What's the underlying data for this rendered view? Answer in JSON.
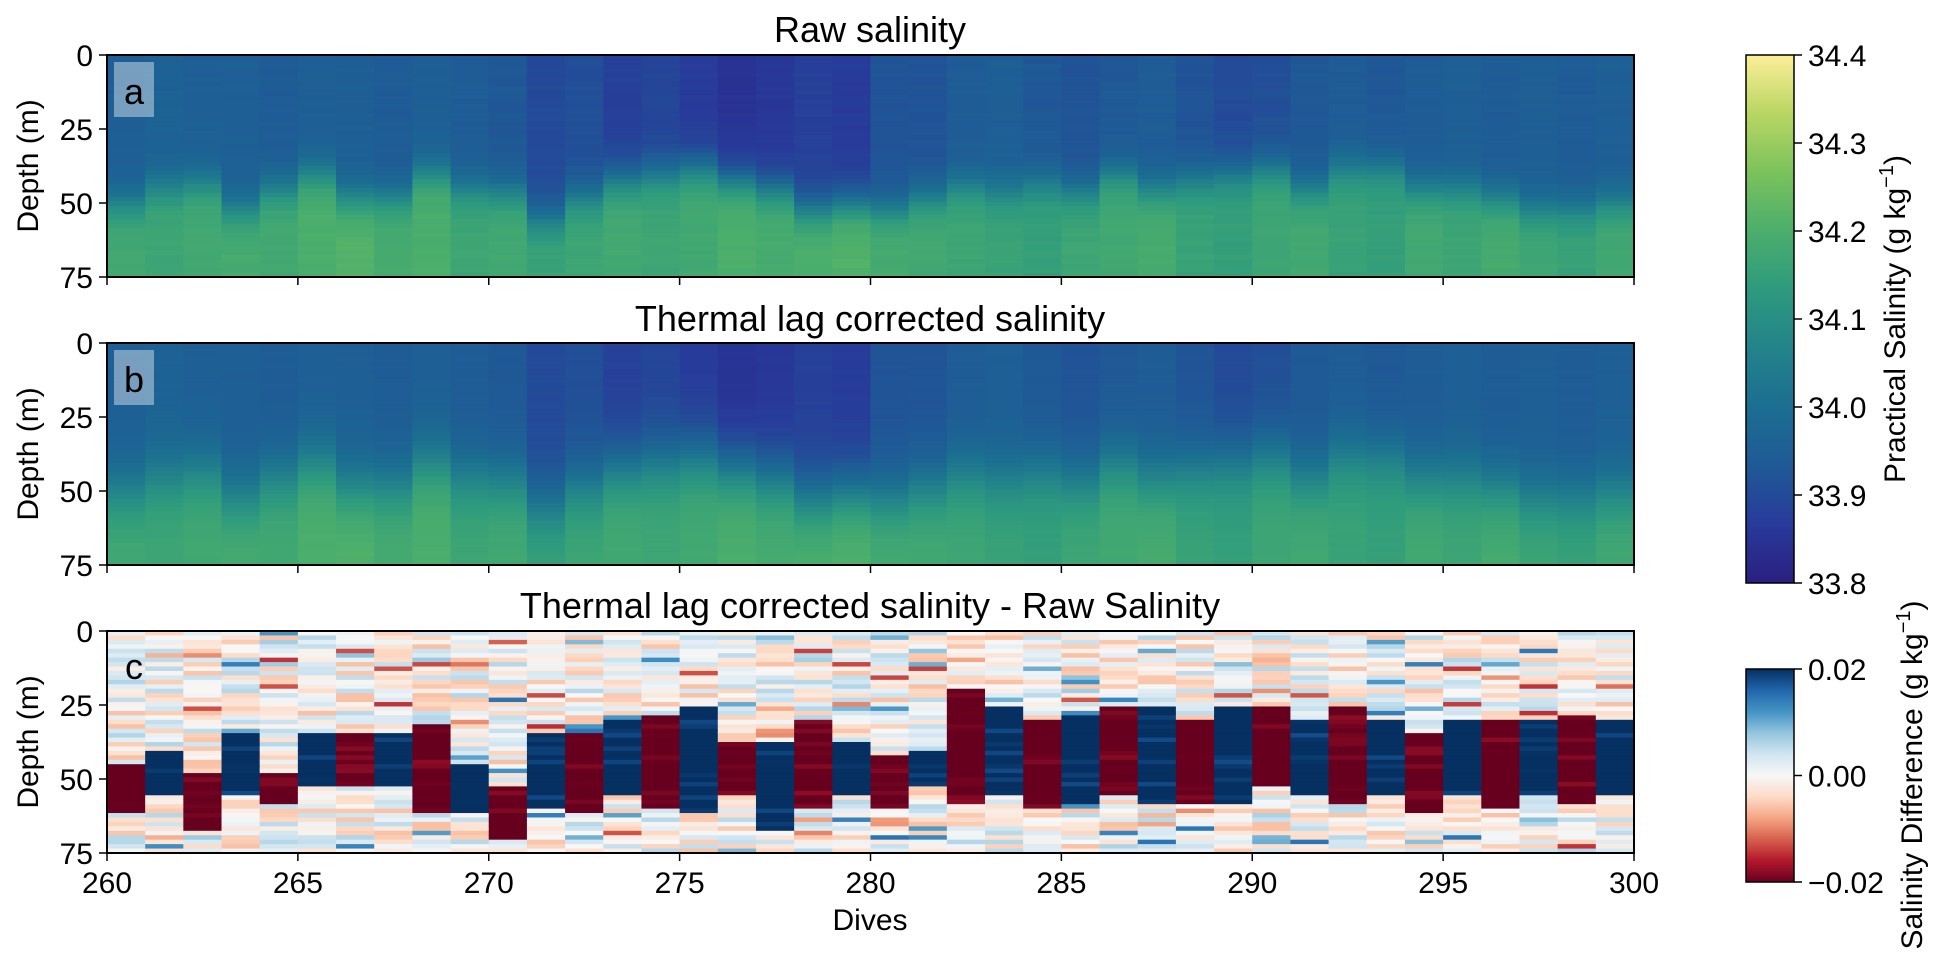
{
  "chart_data": [
    {
      "type": "heatmap",
      "panel_label": "a",
      "title": "Raw salinity",
      "xlabel": "",
      "ylabel": "Depth (m)",
      "xlim": [
        260,
        300
      ],
      "ylim": [
        75,
        0
      ],
      "yticks": [
        "0",
        "25",
        "50",
        "75"
      ],
      "colormap": "haline",
      "colorbar_ref": 0,
      "mixed_layer_depth_m": [
        50,
        45,
        43,
        52,
        45,
        40,
        48,
        48,
        40,
        45,
        46,
        55,
        48,
        42,
        40,
        38,
        42,
        45,
        52,
        50,
        52,
        48,
        44,
        46,
        43,
        46,
        40,
        45,
        42,
        40,
        38,
        45,
        38,
        38,
        45,
        45,
        48,
        52,
        52,
        50
      ],
      "surface_salinity": [
        33.95,
        33.96,
        33.95,
        33.95,
        33.94,
        33.95,
        33.95,
        33.94,
        33.95,
        33.94,
        33.93,
        33.9,
        33.91,
        33.88,
        33.89,
        33.87,
        33.85,
        33.86,
        33.88,
        33.87,
        33.92,
        33.92,
        33.94,
        33.95,
        33.93,
        33.92,
        33.93,
        33.94,
        33.92,
        33.9,
        33.91,
        33.93,
        33.94,
        33.93,
        33.94,
        33.95,
        33.94,
        33.95,
        33.94,
        33.95
      ],
      "deep_salinity": [
        34.18,
        34.17,
        34.18,
        34.19,
        34.18,
        34.2,
        34.21,
        34.19,
        34.2,
        34.17,
        34.18,
        34.16,
        34.17,
        34.18,
        34.17,
        34.18,
        34.2,
        34.19,
        34.2,
        34.21,
        34.19,
        34.18,
        34.17,
        34.16,
        34.15,
        34.17,
        34.18,
        34.19,
        34.16,
        34.15,
        34.17,
        34.18,
        34.16,
        34.15,
        34.18,
        34.17,
        34.19,
        34.17,
        34.16,
        34.18
      ]
    },
    {
      "type": "heatmap",
      "panel_label": "b",
      "title": "Thermal lag corrected salinity",
      "xlabel": "",
      "ylabel": "Depth (m)",
      "xlim": [
        260,
        300
      ],
      "ylim": [
        75,
        0
      ],
      "yticks": [
        "0",
        "25",
        "50",
        "75"
      ],
      "colormap": "haline",
      "colorbar_ref": 0
    },
    {
      "type": "heatmap",
      "panel_label": "c",
      "title": "Thermal lag corrected salinity - Raw Salinity",
      "xlabel": "Dives",
      "ylabel": "Depth (m)",
      "xlim": [
        260,
        300
      ],
      "xticks": [
        "260",
        "265",
        "270",
        "275",
        "280",
        "285",
        "290",
        "295",
        "300"
      ],
      "ylim": [
        75,
        0
      ],
      "yticks": [
        "0",
        "25",
        "50",
        "75"
      ],
      "colormap": "RdBu",
      "colorbar_ref": 1,
      "band_sign": [
        -1,
        1,
        -1,
        1,
        -1,
        1,
        -1,
        1,
        -1,
        1,
        -1,
        1,
        -1,
        1,
        -1,
        1,
        -1,
        1,
        -1,
        1,
        -1,
        1,
        -1,
        1,
        -1,
        1,
        -1,
        1,
        -1,
        1,
        -1,
        1,
        -1,
        1,
        -1,
        1,
        -1,
        1,
        -1,
        1
      ],
      "band_top_m": [
        45,
        40,
        48,
        35,
        48,
        35,
        35,
        35,
        32,
        45,
        52,
        35,
        35,
        30,
        28,
        25,
        38,
        38,
        30,
        38,
        42,
        40,
        20,
        25,
        30,
        28,
        25,
        25,
        30,
        25,
        25,
        30,
        25,
        30,
        35,
        30,
        30,
        30,
        28,
        30
      ],
      "band_bottom_m": [
        62,
        55,
        68,
        55,
        58,
        52,
        52,
        52,
        62,
        62,
        70,
        60,
        62,
        55,
        60,
        62,
        55,
        68,
        60,
        55,
        60,
        52,
        58,
        55,
        60,
        58,
        55,
        58,
        58,
        58,
        52,
        55,
        58,
        55,
        62,
        55,
        60,
        55,
        58,
        55
      ]
    }
  ],
  "colorbars": [
    {
      "label": "Practical Salinity (g kg",
      "label_unit_exponent": "−1",
      "label_close": ")",
      "ticks": [
        "34.4",
        "34.3",
        "34.2",
        "34.1",
        "34.0",
        "33.9",
        "33.8"
      ],
      "range": [
        33.8,
        34.4
      ],
      "colormap": "haline"
    },
    {
      "label": "Salinity Difference (g kg",
      "label_unit_exponent": "−1",
      "label_close": ")",
      "ticks": [
        "0.02",
        "0.00",
        "−0.02"
      ],
      "range": [
        -0.02,
        0.02
      ],
      "colormap": "RdBu"
    }
  ],
  "colors": {
    "haline": [
      "#2a1f80",
      "#283a9a",
      "#1f5a96",
      "#1b6e91",
      "#23838a",
      "#2e9a7e",
      "#4bae6c",
      "#7cc25c",
      "#b8d663",
      "#fdee99"
    ],
    "rdbu": [
      "#67001f",
      "#b2182b",
      "#d6604d",
      "#f4a582",
      "#fddbc7",
      "#f7f7f7",
      "#d1e5f0",
      "#92c5de",
      "#4393c3",
      "#2166ac",
      "#053061"
    ]
  }
}
